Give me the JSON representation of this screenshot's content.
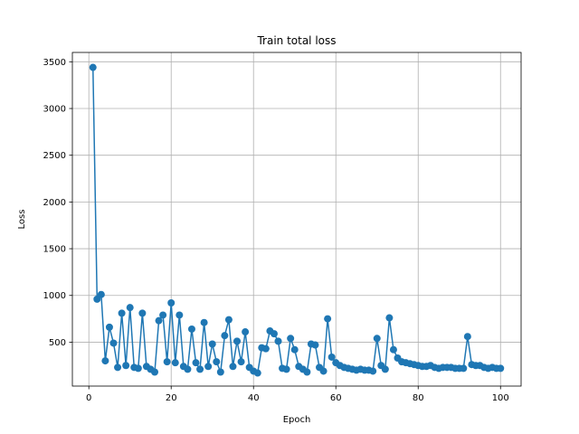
{
  "chart_data": {
    "type": "line",
    "title": "Train total loss",
    "xlabel": "Epoch",
    "ylabel": "Loss",
    "xlim": [
      -4,
      105
    ],
    "ylim": [
      30,
      3600
    ],
    "xticks": [
      0,
      20,
      40,
      60,
      80,
      100
    ],
    "yticks": [
      500,
      1000,
      1500,
      2000,
      2500,
      3000,
      3500
    ],
    "grid": true,
    "marker": "circle",
    "color": "#1f77b4",
    "series": [
      {
        "x": [
          1,
          2,
          3,
          4,
          5,
          6,
          7,
          8,
          9,
          10,
          11,
          12,
          13,
          14,
          15,
          16,
          17,
          18,
          19,
          20,
          21,
          22,
          23,
          24,
          25,
          26,
          27,
          28,
          29,
          30,
          31,
          32,
          33,
          34,
          35,
          36,
          37,
          38,
          39,
          40,
          41,
          42,
          43,
          44,
          45,
          46,
          47,
          48,
          49,
          50,
          51,
          52,
          53,
          54,
          55,
          56,
          57,
          58,
          59,
          60,
          61,
          62,
          63,
          64,
          65,
          66,
          67,
          68,
          69,
          70,
          71,
          72,
          73,
          74,
          75,
          76,
          77,
          78,
          79,
          80,
          81,
          82,
          83,
          84,
          85,
          86,
          87,
          88,
          89,
          90,
          91,
          92,
          93,
          94,
          95,
          96,
          97,
          98,
          99,
          100
        ],
        "values": [
          3440,
          960,
          1010,
          300,
          660,
          490,
          230,
          810,
          250,
          870,
          230,
          220,
          810,
          240,
          210,
          180,
          730,
          790,
          290,
          920,
          280,
          790,
          240,
          210,
          640,
          280,
          210,
          710,
          240,
          480,
          290,
          180,
          570,
          740,
          240,
          510,
          290,
          610,
          230,
          190,
          170,
          440,
          430,
          620,
          590,
          510,
          220,
          210,
          540,
          420,
          240,
          210,
          180,
          480,
          470,
          230,
          190,
          750,
          340,
          280,
          250,
          230,
          220,
          210,
          200,
          210,
          200,
          200,
          190,
          540,
          250,
          210,
          760,
          420,
          330,
          290,
          280,
          270,
          260,
          250,
          240,
          240,
          250,
          230,
          220,
          230,
          230,
          230,
          220,
          220,
          220,
          560,
          260,
          250,
          250,
          230,
          220,
          230,
          220,
          220
        ]
      }
    ]
  }
}
